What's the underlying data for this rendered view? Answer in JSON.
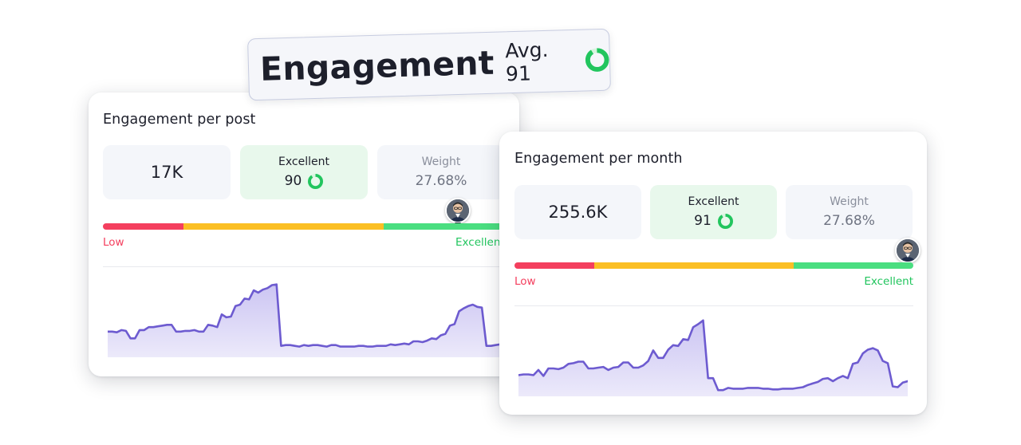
{
  "badge": {
    "title": "Engagement",
    "avg_label": "Avg. 91",
    "ring_value": 91
  },
  "colors": {
    "good": "#22c55e",
    "low": "#f43f5e",
    "mid": "#fbbf24",
    "line": "#6d5bd0",
    "fill": "#c9c2f2"
  },
  "cards": {
    "post": {
      "title": "Engagement per post",
      "value": "17K",
      "rating_label": "Excellent",
      "rating_value": "90",
      "ring_value": 90,
      "weight_label": "Weight",
      "weight_value": "27.68%",
      "scale_low": "Low",
      "scale_high": "Excellent",
      "score": 0.9,
      "sparkline": [
        30,
        30,
        29,
        32,
        31,
        21,
        21,
        32,
        32,
        36,
        36,
        37,
        38,
        39,
        39,
        30,
        30,
        31,
        31,
        32,
        30,
        30,
        39,
        38,
        36,
        53,
        49,
        50,
        64,
        66,
        74,
        73,
        85,
        82,
        86,
        88,
        92,
        93,
        11,
        12,
        12,
        11,
        10,
        12,
        11,
        12,
        12,
        11,
        10,
        12,
        12,
        10,
        10,
        10,
        10,
        11,
        11,
        10,
        10,
        11,
        11,
        11,
        13,
        12,
        13,
        14,
        13,
        17,
        17,
        16,
        18,
        21,
        20,
        25,
        27,
        38,
        40,
        57,
        61,
        64,
        66,
        63,
        62,
        11,
        11,
        12,
        13
      ]
    },
    "month": {
      "title": "Engagement per month",
      "value": "255.6K",
      "rating_label": "Excellent",
      "rating_value": "91",
      "ring_value": 91,
      "weight_label": "Weight",
      "weight_value": "27.68%",
      "scale_low": "Low",
      "scale_high": "Excellent",
      "score": 1.0,
      "sparkline": [
        24,
        25,
        25,
        24,
        31,
        23,
        33,
        33,
        32,
        34,
        39,
        40,
        42,
        42,
        33,
        33,
        34,
        35,
        31,
        34,
        35,
        41,
        41,
        34,
        34,
        37,
        43,
        57,
        47,
        47,
        58,
        64,
        63,
        72,
        71,
        88,
        92,
        97,
        20,
        20,
        4,
        4,
        7,
        6,
        6,
        6,
        7,
        7,
        7,
        6,
        6,
        5,
        5,
        6,
        6,
        6,
        7,
        8,
        11,
        13,
        15,
        19,
        20,
        16,
        20,
        23,
        20,
        39,
        41,
        53,
        58,
        60,
        57,
        43,
        40,
        9,
        8,
        14,
        16
      ]
    }
  }
}
